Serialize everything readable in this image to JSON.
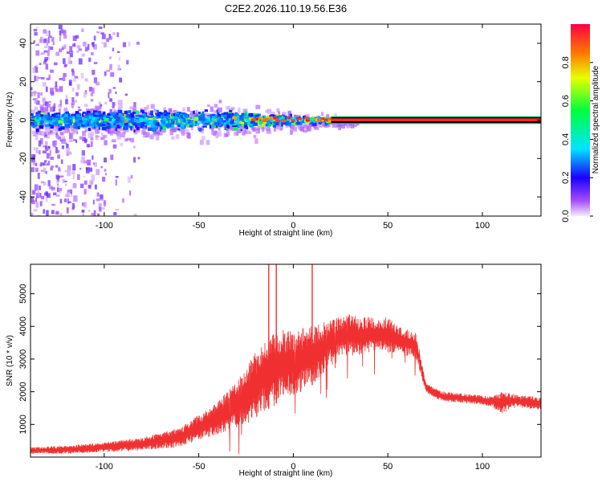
{
  "title": "C2E2.2026.110.19.56.E36",
  "chart_data": [
    {
      "type": "heatmap",
      "xlabel": "Height of straight line (km)",
      "ylabel": "Frequency (Hz)",
      "xlim": [
        -139,
        131
      ],
      "ylim": [
        -50,
        50
      ],
      "xticks": [
        -100,
        -50,
        0,
        50,
        100
      ],
      "yticks": [
        -40,
        -20,
        0,
        20,
        40
      ],
      "colorbar": {
        "label": "Normalized spectral amplitude",
        "range": [
          0,
          1
        ],
        "ticks": [
          "0.0",
          "0.2",
          "0.4",
          "0.6",
          "0.8"
        ],
        "colormap": [
          "#f4ecff",
          "#a64dff",
          "#1a00ff",
          "#00e5ff",
          "#00ff3c",
          "#e8ff00",
          "#ff7700",
          "#ff0044"
        ]
      },
      "features": {
        "noise_region_x": [
          -139,
          -90
        ],
        "signal_band_x": [
          -139,
          20
        ],
        "signal_band_halfwidth_hz": 6,
        "constant_line_x": [
          20,
          131
        ],
        "constant_line_freq_hz": 0,
        "constant_line_amplitude": 0.95
      }
    },
    {
      "type": "line",
      "xlabel": "Height of straight line (km)",
      "ylabel": "SNR (10 * v/v)",
      "xlim": [
        -139,
        131
      ],
      "ylim": [
        0,
        5900
      ],
      "xticks": [
        -100,
        -50,
        0,
        50,
        100
      ],
      "yticks": [
        1000,
        2000,
        3000,
        4000,
        5000
      ],
      "color": "#f03030",
      "envelope": {
        "x": [
          -139,
          -120,
          -100,
          -80,
          -60,
          -50,
          -40,
          -30,
          -25,
          -20,
          -15,
          -10,
          -5,
          0,
          5,
          10,
          15,
          20,
          25,
          30,
          35,
          40,
          45,
          50,
          55,
          60,
          65,
          70,
          75,
          80,
          90,
          100,
          105,
          110,
          115,
          120,
          131
        ],
        "lo": [
          100,
          100,
          150,
          200,
          300,
          500,
          700,
          900,
          1000,
          1200,
          1400,
          1600,
          1800,
          1900,
          2000,
          2200,
          2500,
          2900,
          3100,
          3100,
          3100,
          3200,
          3300,
          3200,
          3200,
          3100,
          3000,
          2000,
          1800,
          1700,
          1650,
          1600,
          1550,
          1300,
          1500,
          1500,
          1450
        ],
        "hi": [
          300,
          350,
          450,
          600,
          900,
          1300,
          1700,
          2300,
          2800,
          3200,
          3600,
          3800,
          3900,
          3900,
          4000,
          4000,
          4100,
          4200,
          4300,
          4400,
          4300,
          4300,
          4200,
          4300,
          4000,
          3900,
          3800,
          2300,
          2100,
          2000,
          1950,
          1900,
          1850,
          2000,
          1950,
          1900,
          1850
        ]
      },
      "spikes": [
        {
          "x": -13,
          "value": 5900
        },
        {
          "x": -9,
          "value": 5900
        },
        {
          "x": 10,
          "value": 5900
        }
      ]
    }
  ]
}
